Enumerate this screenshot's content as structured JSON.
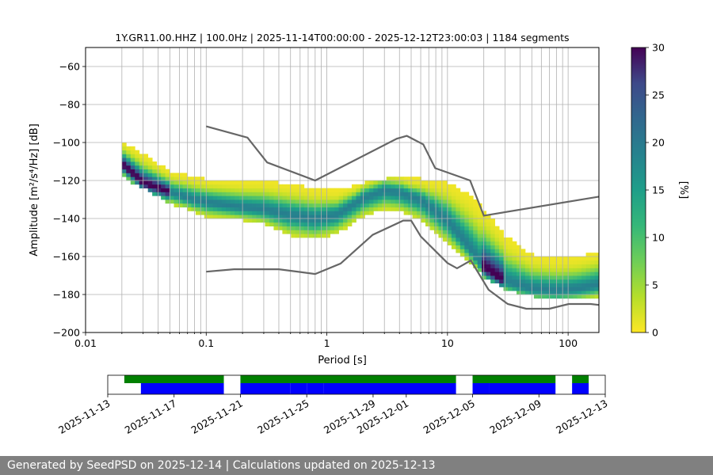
{
  "chart_data": [
    {
      "type": "heatmap",
      "title": "1Y.GR11.00.HHZ | 100.0Hz | 2025-11-14T00:00:00 - 2025-12-12T23:00:03 | 1184 segments",
      "xlabel": "Period [s]",
      "ylabel": "Amplitude [m²/s⁴/Hz] [dB]",
      "xscale": "log",
      "xlim": [
        0.01,
        180
      ],
      "ylim": [
        -200,
        -50
      ],
      "xtick_labels": [
        "0.01",
        "0.1",
        "1",
        "10",
        "100"
      ],
      "ytick_labels": [
        "−60",
        "−80",
        "−100",
        "−120",
        "−140",
        "−160",
        "−180",
        "−200"
      ],
      "grid": true,
      "period_range_s": [
        0.02,
        180
      ],
      "mode_curve": {
        "x": [
          0.02,
          0.03,
          0.05,
          0.08,
          0.12,
          0.2,
          0.3,
          0.5,
          0.8,
          1.2,
          2,
          3,
          4,
          6,
          10,
          15,
          20,
          30,
          50,
          80,
          120,
          180
        ],
        "y": [
          -112,
          -122,
          -127,
          -131,
          -133,
          -135,
          -136,
          -139,
          -141,
          -139,
          -130,
          -126,
          -127,
          -131,
          -142,
          -156,
          -167,
          -174,
          -178,
          -179,
          -178,
          -176
        ]
      },
      "spread": {
        "x": [
          0.02,
          0.05,
          0.1,
          0.2,
          0.3,
          0.5,
          0.8,
          1.2,
          2,
          3,
          4,
          6,
          10,
          15,
          20,
          30,
          50,
          80,
          120,
          180
        ],
        "upper": [
          -100,
          -116,
          -120,
          -121,
          -121,
          -123,
          -125,
          -126,
          -122,
          -120,
          -119,
          -120,
          -122,
          -128,
          -136,
          -150,
          -160,
          -162,
          -161,
          -158
        ],
        "lower": [
          -119,
          -133,
          -140,
          -142,
          -144,
          -150,
          -152,
          -149,
          -140,
          -136,
          -137,
          -142,
          -154,
          -164,
          -172,
          -178,
          -182,
          -182,
          -182,
          -182
        ]
      },
      "noise_models": [
        {
          "x": [
            0.1,
            0.22,
            0.32,
            0.8,
            3.8,
            4.6,
            6.3,
            7.9,
            15.4,
            20,
            180
          ],
          "y": [
            -91.5,
            -97.4,
            -110.5,
            -120,
            -98,
            -96.5,
            -101,
            -113.5,
            -120,
            -138.5,
            -128.5
          ]
        },
        {
          "x": [
            0.1,
            0.17,
            0.4,
            0.8,
            1.3,
            2.4,
            4.3,
            5,
            6,
            10,
            12,
            15.6,
            21.9,
            31.6,
            45,
            70,
            101,
            154,
            180
          ],
          "y": [
            -168,
            -166.7,
            -166.7,
            -169.2,
            -163.7,
            -148.6,
            -141.1,
            -141.1,
            -149.4,
            -163.4,
            -166.2,
            -162.1,
            -177.5,
            -185,
            -187.5,
            -187.5,
            -185,
            -185,
            -185.5
          ]
        }
      ],
      "colorbar": {
        "label": "[%]",
        "min": 0,
        "max": 30,
        "tick_labels": [
          "0",
          "5",
          "10",
          "15",
          "20",
          "25",
          "30"
        ],
        "colormap": "viridis_r"
      },
      "line_color": "#666666"
    },
    {
      "type": "bar",
      "description": "data availability timeline",
      "xtick_labels": [
        "2025-11-13",
        "2025-11-17",
        "2025-11-21",
        "2025-11-25",
        "2025-11-29",
        "2025-12-01",
        "2025-12-05",
        "2025-12-09",
        "2025-12-13"
      ],
      "upper_colour": "#008000",
      "lower_colour": "#0000ff",
      "upper_segments": [
        [
          "2025-11-14",
          "2025-11-20"
        ],
        [
          "2025-11-21",
          "2025-12-04"
        ],
        [
          "2025-12-05",
          "2025-12-10"
        ],
        [
          "2025-12-11",
          "2025-12-12"
        ]
      ],
      "lower_segments": [
        [
          "2025-11-15",
          "2025-11-20"
        ],
        [
          "2025-11-21",
          "2025-11-24"
        ],
        [
          "2025-11-24",
          "2025-11-25"
        ],
        [
          "2025-11-25",
          "2025-11-26"
        ],
        [
          "2025-11-26",
          "2025-12-04"
        ],
        [
          "2025-12-05",
          "2025-12-06"
        ],
        [
          "2025-12-06",
          "2025-12-10"
        ],
        [
          "2025-12-11",
          "2025-12-12"
        ]
      ]
    }
  ],
  "footer": {
    "text": "Generated by SeedPSD on 2025-12-14 | Calculations updated on 2025-12-13"
  }
}
